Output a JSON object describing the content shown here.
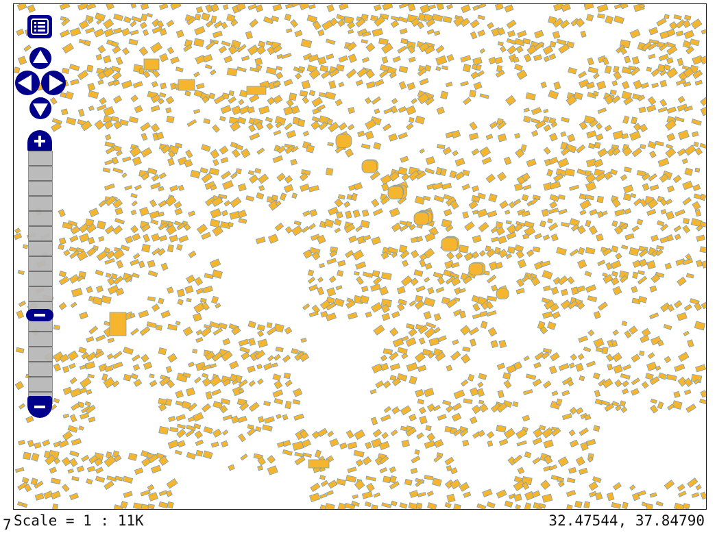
{
  "map": {
    "building_fill": "#f5b52e",
    "building_stroke": "#7b9fb8",
    "background": "#ffffff",
    "controls_color": "#00008b"
  },
  "controls": {
    "layer_switcher_icon": "layer-list-icon",
    "pan_icons": [
      "pan-up-icon",
      "pan-left-icon",
      "pan-right-icon",
      "pan-down-icon"
    ],
    "zoom_in_icon": "plus-icon",
    "zoom_out_icon": "minus-icon",
    "zoom_slider_icon": "zoom-slider-handle-icon",
    "zoom_level_fraction": 0.65
  },
  "status": {
    "scale": "Scale = 1 : 11K",
    "coordinates": "32.47544, 37.84790",
    "stray_digit": "7"
  }
}
